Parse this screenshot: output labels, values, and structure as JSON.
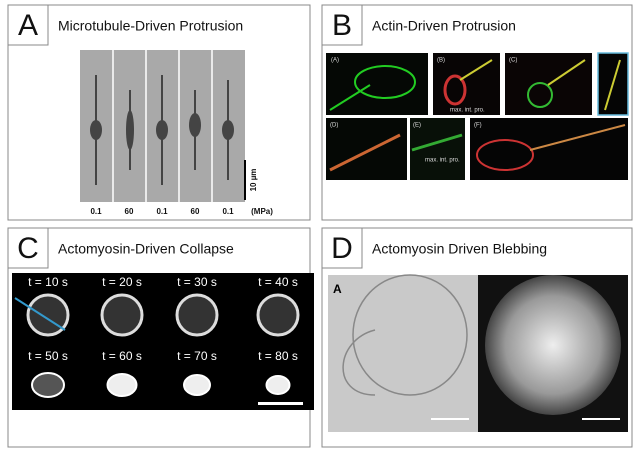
{
  "panels": [
    {
      "letter": "A",
      "title": "Microtubule-Driven Protrusion",
      "scale_label": "10 µm",
      "pressure_labels": [
        "0.1",
        "60",
        "0.1",
        "60",
        "0.1"
      ],
      "pressure_unit": "(MPa)"
    },
    {
      "letter": "B",
      "title": "Actin-Driven Protrusion",
      "sublabels": [
        "(A)",
        "(B)",
        "(C)",
        "(D)",
        "(E)",
        "(F)"
      ],
      "annotations": [
        "max. int. pro.",
        "max. int. pro."
      ]
    },
    {
      "letter": "C",
      "title": "Actomyosin-Driven Collapse",
      "time_labels": [
        "t = 10 s",
        "t = 20 s",
        "t = 30 s",
        "t = 40 s",
        "t = 50 s",
        "t = 60 s",
        "t = 70 s",
        "t = 80 s"
      ]
    },
    {
      "letter": "D",
      "title": "Actomyosin Driven Blebbing",
      "sublabel": "A"
    }
  ]
}
